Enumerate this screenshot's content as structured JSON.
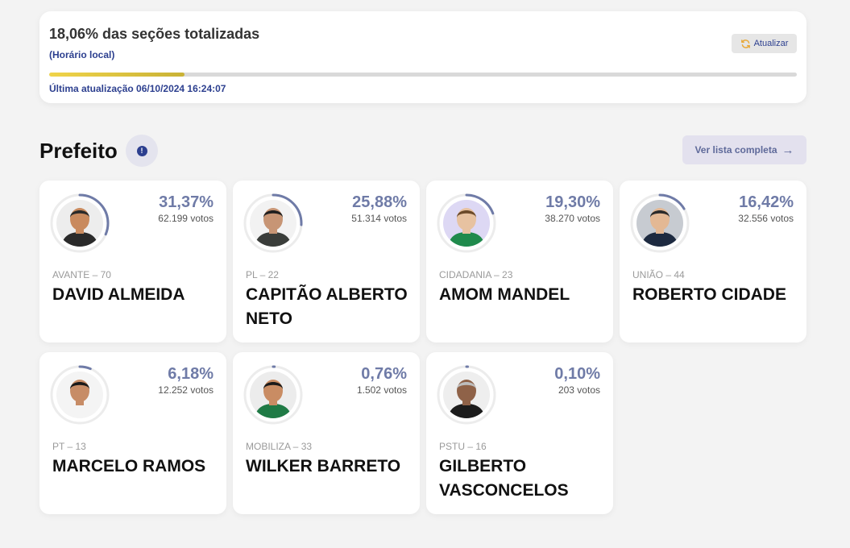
{
  "status": {
    "title": "18,06% das seções totalizadas",
    "subtitle": "(Horário local)",
    "refresh_label": "Atualizar",
    "progress_fraction": 0.1806,
    "last_update": "Última atualização 06/10/2024 16:24:07",
    "progress_color": "#e8c93a"
  },
  "section": {
    "title": "Prefeito",
    "info_glyph": "!",
    "list_button": "Ver lista completa",
    "list_arrow": "→"
  },
  "candidates": [
    {
      "name": "DAVID ALMEIDA",
      "party": "AVANTE – 70",
      "percent": "31,37%",
      "share": 31.37,
      "votes": "62.199 votos",
      "skin": "#c98a5e",
      "hair": "#2a2a2a",
      "shirt": "#2a2a2a",
      "bg": "#ededed"
    },
    {
      "name": "CAPITÃO ALBERTO NETO",
      "party": "PL – 22",
      "percent": "25,88%",
      "share": 25.88,
      "votes": "51.314 votos",
      "skin": "#c79575",
      "hair": "#1f1f1f",
      "shirt": "#3a3d3a",
      "bg": "#f2f2f2"
    },
    {
      "name": "AMOM MANDEL",
      "party": "CIDADANIA – 23",
      "percent": "19,30%",
      "share": 19.3,
      "votes": "38.270 votos",
      "skin": "#e7c2a1",
      "hair": "#6b4a2a",
      "shirt": "#1f8a4c",
      "bg": "#ddd8f4"
    },
    {
      "name": "ROBERTO CIDADE",
      "party": "UNIÃO – 44",
      "percent": "16,42%",
      "share": 16.42,
      "votes": "32.556 votos",
      "skin": "#e3b894",
      "hair": "#2a2a2a",
      "shirt": "#1d2a40",
      "bg": "#c7cbd1"
    },
    {
      "name": "MARCELO RAMOS",
      "party": "PT – 13",
      "percent": "6,18%",
      "share": 6.18,
      "votes": "12.252 votos",
      "skin": "#c78c66",
      "hair": "#1a1a1a",
      "shirt": "#f4f4f4",
      "bg": "#f4f4f4"
    },
    {
      "name": "WILKER BARRETO",
      "party": "MOBILIZA – 33",
      "percent": "0,76%",
      "share": 0.76,
      "votes": "1.502 votos",
      "skin": "#c98c63",
      "hair": "#1a1a1a",
      "shirt": "#1f7a45",
      "bg": "#ececec"
    },
    {
      "name": "GILBERTO VASCONCELOS",
      "party": "PSTU – 16",
      "percent": "0,10%",
      "share": 0.1,
      "votes": "203 votos",
      "skin": "#8f6248",
      "hair": "#bdbdbd",
      "shirt": "#1c1c1c",
      "bg": "#eeeeee"
    }
  ]
}
